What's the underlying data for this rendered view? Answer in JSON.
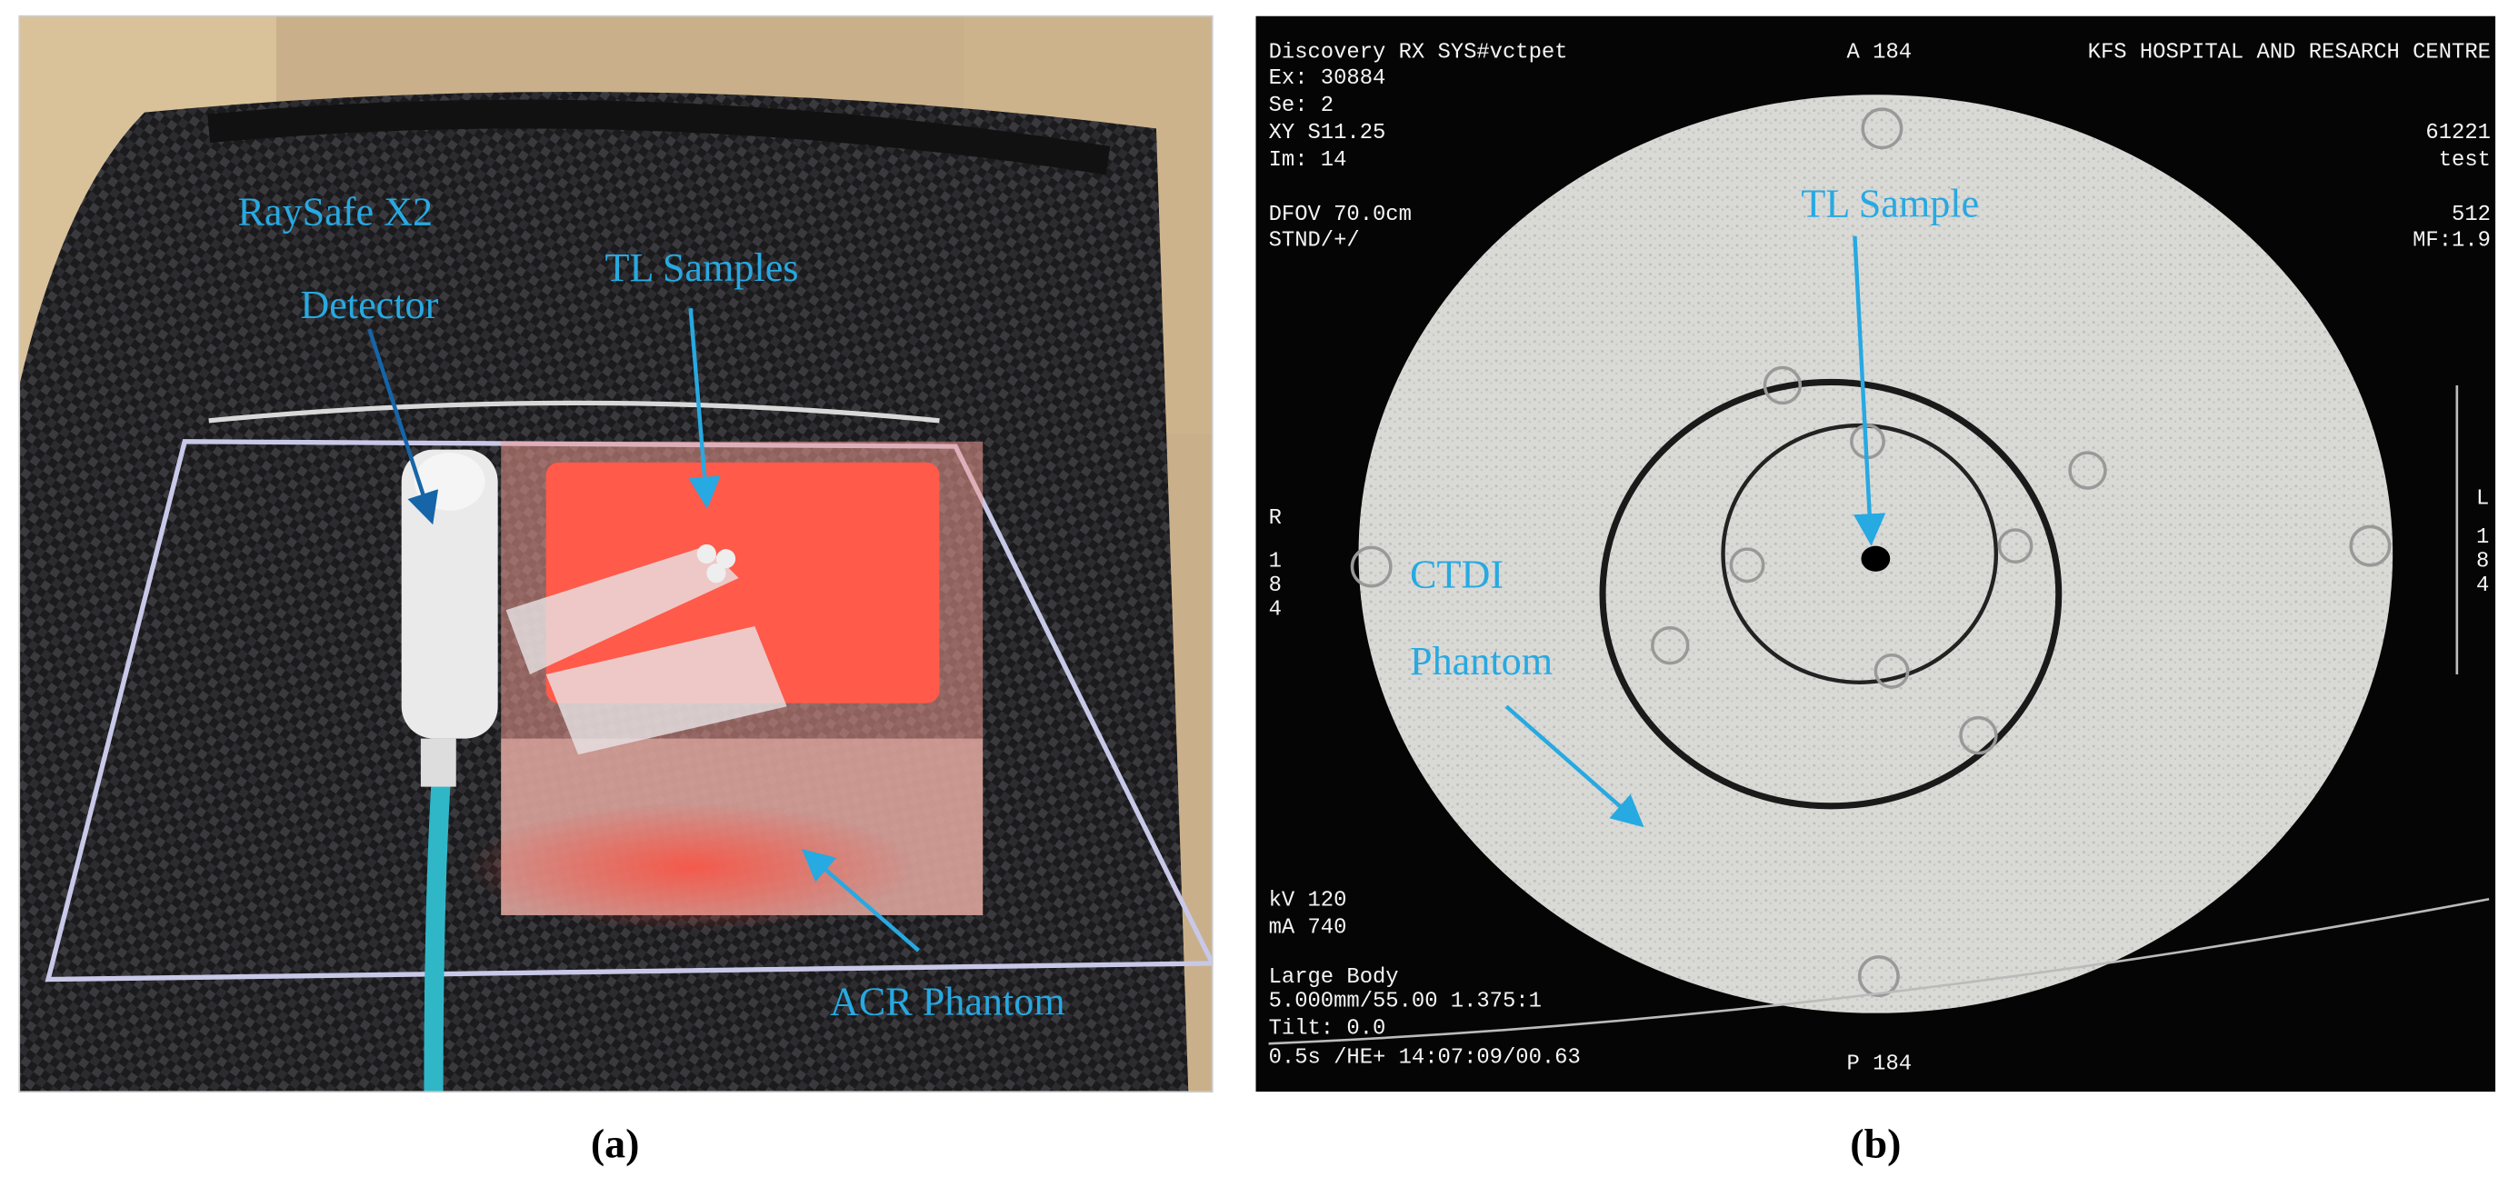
{
  "panels": [
    {
      "label": "(a)",
      "annotations": [
        "RaySafe X2",
        "Detector",
        "TL Samples",
        "ACR Phantom"
      ]
    },
    {
      "label": "(b)",
      "screen_text": {
        "top_left": [
          "Discovery RX SYS#vctpet",
          "Ex: 30884",
          "Se: 2",
          "XY S11.25",
          "Im: 14",
          "DFOV 70.0cm",
          "STND/+/"
        ],
        "top_center": "A 184",
        "top_right": [
          "KFS HOSPITAL AND RESARCH CENTRE",
          "61221",
          "test",
          "512",
          "MF:1.9"
        ],
        "left_side": [
          "R",
          "1",
          "8",
          "4"
        ],
        "right_side": [
          "L",
          "1",
          "8",
          "4"
        ],
        "bottom_left": [
          "kV 120",
          "mA 740",
          "Large Body",
          "5.000mm/55.00 1.375:1",
          "Tilt: 0.0",
          "0.5s /HE+ 14:07:09/00.63"
        ],
        "bottom_center": "P 184"
      },
      "annotations": [
        "TL Sample",
        "CTDI",
        "Phantom"
      ]
    }
  ]
}
